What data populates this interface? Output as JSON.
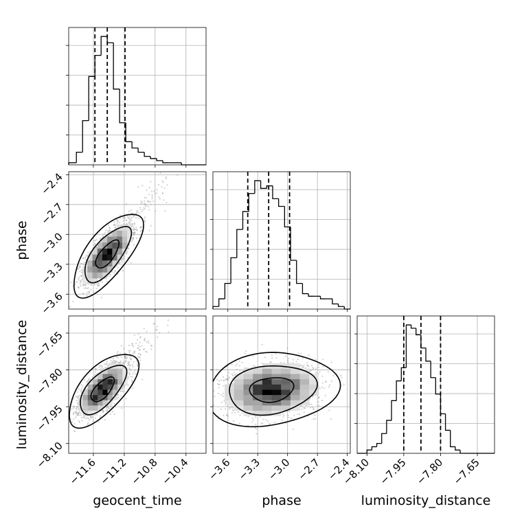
{
  "chart_data": {
    "type": "corner",
    "parameters": [
      "geocent_time",
      "phase",
      "luminosity_distance"
    ],
    "grid": true,
    "colors": {
      "line": "#000000",
      "grid": "#b0b0b0",
      "scatter": "#9a9a9a",
      "background": "#ffffff"
    },
    "ranges": {
      "geocent_time": [
        -11.92,
        -10.14
      ],
      "phase": [
        -3.75,
        -2.37
      ],
      "luminosity_distance": [
        -8.14,
        -7.58
      ]
    },
    "ticks": {
      "geocent_time": {
        "values": [
          -11.6,
          -11.2,
          -10.8,
          -10.4
        ],
        "labels": [
          "−11.6",
          "−11.2",
          "−10.8",
          "−10.4"
        ]
      },
      "phase": {
        "values": [
          -3.6,
          -3.3,
          -3.0,
          -2.7,
          -2.4
        ],
        "labels": [
          "−3.6",
          "−3.3",
          "−3.0",
          "−2.7",
          "−2.4"
        ]
      },
      "luminosity_distance": {
        "values": [
          -8.1,
          -7.95,
          -7.8,
          -7.65
        ],
        "labels": [
          "−8.10",
          "−7.95",
          "−7.80",
          "−7.65"
        ]
      }
    },
    "quantiles": {
      "geocent_time": [
        -11.58,
        -11.42,
        -11.19
      ],
      "phase": [
        -3.4,
        -3.19,
        -2.98
      ],
      "luminosity_distance": [
        -7.95,
        -7.88,
        -7.8
      ]
    },
    "histograms": [
      {
        "parameter": "geocent_time",
        "edges": [
          -11.92,
          -11.82,
          -11.74,
          -11.66,
          -11.58,
          -11.5,
          -11.42,
          -11.34,
          -11.26,
          -11.18,
          -11.1,
          -11.02,
          -10.94,
          -10.86,
          -10.78,
          -10.7,
          -10.62,
          -10.54,
          -10.46,
          -10.38,
          -10.3,
          -10.22,
          -10.14
        ],
        "counts": [
          1,
          6,
          21,
          42,
          52,
          61,
          58,
          36,
          20,
          11,
          8,
          6,
          4,
          3,
          2,
          1,
          1,
          1,
          0,
          0,
          0,
          0
        ]
      },
      {
        "parameter": "phase",
        "edges": [
          -3.75,
          -3.69,
          -3.63,
          -3.57,
          -3.51,
          -3.45,
          -3.39,
          -3.33,
          -3.27,
          -3.21,
          -3.15,
          -3.09,
          -3.03,
          -2.97,
          -2.91,
          -2.85,
          -2.79,
          -2.73,
          -2.67,
          -2.61,
          -2.55,
          -2.49,
          -2.43,
          -2.37
        ],
        "counts": [
          1,
          4,
          10,
          20,
          31,
          38,
          45,
          50,
          47,
          48,
          43,
          40,
          32,
          19,
          10,
          6,
          5,
          5,
          4,
          4,
          2,
          1,
          0
        ]
      },
      {
        "parameter": "luminosity_distance",
        "edges": [
          -8.14,
          -8.12,
          -8.1,
          -8.08,
          -8.06,
          -8.04,
          -8.02,
          -8.0,
          -7.98,
          -7.96,
          -7.94,
          -7.92,
          -7.9,
          -7.88,
          -7.86,
          -7.84,
          -7.82,
          -7.8,
          -7.78,
          -7.76,
          -7.74,
          -7.72,
          -7.7,
          -7.68,
          -7.66,
          -7.64,
          -7.62,
          -7.6,
          -7.58
        ],
        "counts": [
          0,
          0,
          1,
          2,
          3,
          6,
          10,
          16,
          22,
          26,
          39,
          38,
          36,
          32,
          28,
          23,
          18,
          12,
          7,
          2,
          1,
          0,
          0,
          0,
          0,
          0,
          0,
          0
        ]
      }
    ],
    "pair_panels": [
      {
        "x": "geocent_time",
        "y": "phase",
        "center": [
          -11.42,
          -3.2
        ],
        "sigma": [
          0.15,
          0.14
        ],
        "correlation": 0.7,
        "points": 1800,
        "tail_points": 220,
        "contour_levels_sigma": [
          1.0,
          2.0,
          3.0
        ]
      },
      {
        "x": "geocent_time",
        "y": "luminosity_distance",
        "center": [
          -11.48,
          -7.88
        ],
        "sigma": [
          0.15,
          0.05
        ],
        "correlation": 0.65,
        "points": 1800,
        "tail_points": 220,
        "contour_levels_sigma": [
          1.0,
          2.0,
          3.0
        ]
      },
      {
        "x": "phase",
        "y": "luminosity_distance",
        "center": [
          -3.16,
          -7.88
        ],
        "sigma": [
          0.22,
          0.05
        ],
        "correlation": 0.15,
        "points": 2200,
        "tail_points": 0,
        "contour_levels_sigma": [
          1.0,
          2.0,
          3.0
        ]
      }
    ]
  }
}
